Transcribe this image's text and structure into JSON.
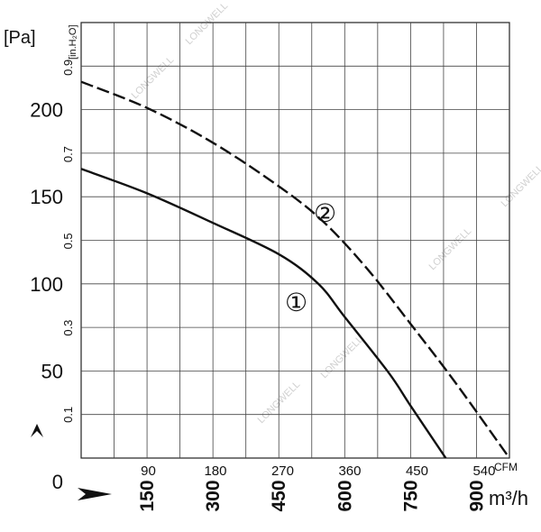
{
  "chart_data": {
    "type": "line",
    "title": "",
    "watermark": "LONGWELL",
    "y_primary": {
      "unit_label": "[Pa]",
      "ticks": [
        0,
        50,
        100,
        150,
        200
      ],
      "tick_labels": [
        "0",
        "50",
        "100",
        "150",
        "200"
      ],
      "range": [
        0,
        250
      ]
    },
    "y_secondary": {
      "unit_label": "[in.H₂O]",
      "ticks": [
        0.1,
        0.3,
        0.5,
        0.7,
        0.9
      ],
      "tick_labels": [
        "0.1",
        "0.3",
        "0.5",
        "0.7",
        "0.9"
      ]
    },
    "x_primary": {
      "unit_label": "m³/h",
      "ticks": [
        150,
        300,
        450,
        600,
        750,
        900
      ],
      "tick_labels": [
        "150",
        "300",
        "450",
        "600",
        "750",
        "900"
      ],
      "range": [
        0,
        975
      ]
    },
    "x_secondary": {
      "unit_label": "CFM",
      "ticks": [
        90,
        180,
        270,
        360,
        450,
        540
      ],
      "tick_labels": [
        "90",
        "180",
        "270",
        "360",
        "450",
        "540"
      ]
    },
    "grid": true,
    "series": [
      {
        "name": "①",
        "style": "solid",
        "x": [
          0,
          150,
          300,
          450,
          540,
          600,
          700,
          750,
          830
        ],
        "y": [
          166,
          152,
          135,
          117,
          100,
          81,
          49,
          30,
          0
        ]
      },
      {
        "name": "②",
        "style": "dashed",
        "x": [
          0,
          150,
          300,
          450,
          550,
          650,
          750,
          850,
          975
        ],
        "y": [
          216,
          201,
          181,
          156,
          136,
          109,
          77,
          44,
          0
        ]
      }
    ]
  }
}
